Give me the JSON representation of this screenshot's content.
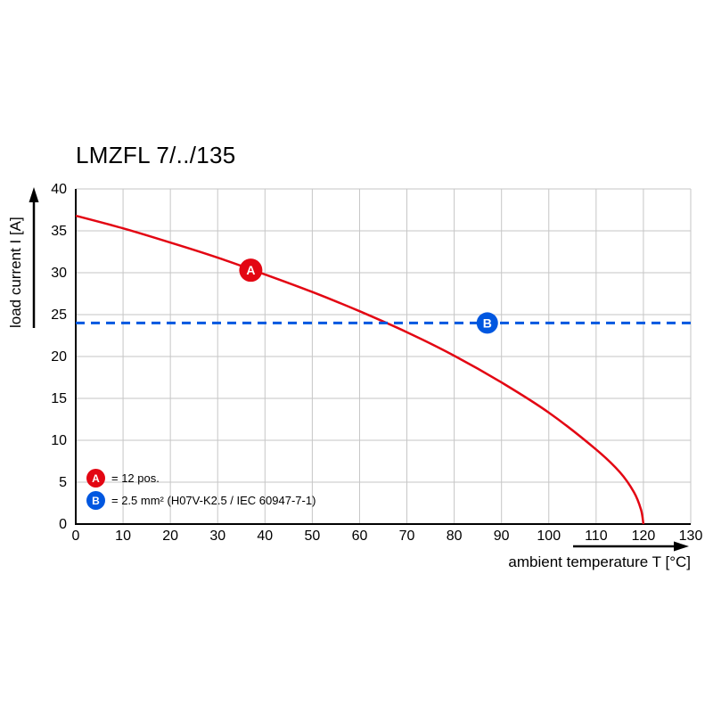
{
  "chart_data": {
    "type": "line",
    "title": "LMZFL 7/../135",
    "xlabel": "ambient temperature T [°C]",
    "ylabel": "load current I [A]",
    "xlim": [
      0,
      130
    ],
    "ylim": [
      0,
      40
    ],
    "xticks": [
      0,
      10,
      20,
      30,
      40,
      50,
      60,
      70,
      80,
      90,
      100,
      110,
      120,
      130
    ],
    "yticks": [
      0,
      5,
      10,
      15,
      20,
      25,
      30,
      35,
      40
    ],
    "grid": true,
    "legend_position": "lower-left",
    "series": [
      {
        "name": "A",
        "label": "= 12 pos.",
        "color": "#e30613",
        "style": "solid",
        "points": [
          [
            0,
            36.8
          ],
          [
            10,
            35.3
          ],
          [
            20,
            33.6
          ],
          [
            30,
            31.8
          ],
          [
            40,
            29.8
          ],
          [
            50,
            27.7
          ],
          [
            60,
            25.4
          ],
          [
            70,
            22.9
          ],
          [
            80,
            20.1
          ],
          [
            90,
            16.9
          ],
          [
            100,
            13.3
          ],
          [
            110,
            8.9
          ],
          [
            115,
            6.2
          ],
          [
            118,
            3.8
          ],
          [
            119.5,
            1.7
          ],
          [
            120,
            0
          ]
        ],
        "marker": {
          "letter": "A",
          "x": 37,
          "y": 30.3
        }
      },
      {
        "name": "B",
        "label": "= 2.5 mm² (H07V-K2.5 / IEC 60947-7-1)",
        "color": "#0057e0",
        "style": "dashed",
        "points": [
          [
            0,
            24
          ],
          [
            130,
            24
          ]
        ],
        "marker": {
          "letter": "B",
          "x": 87,
          "y": 24
        }
      }
    ]
  }
}
